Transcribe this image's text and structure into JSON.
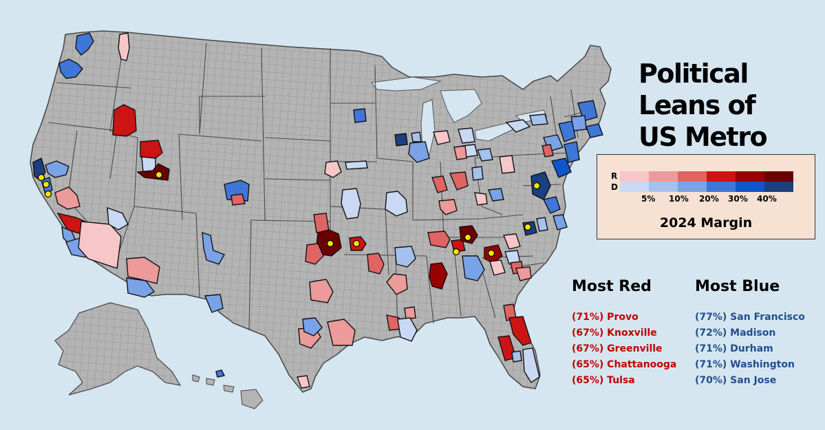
{
  "title": {
    "line1": "Political Leans of",
    "line2": "US Metro Areas"
  },
  "legend": {
    "row_r_label": "R",
    "row_d_label": "D",
    "red_colors": [
      "#f6c6c9",
      "#ec9a9a",
      "#e06464",
      "#cc1414",
      "#990000",
      "#6b0000"
    ],
    "blue_colors": [
      "#c9d8f3",
      "#a7c1ee",
      "#7aa2e6",
      "#3f77d8",
      "#1155cc",
      "#1c3f7d"
    ],
    "ticks": [
      "5%",
      "10%",
      "20%",
      "30%",
      "40%"
    ],
    "caption": "2024 Margin"
  },
  "most_red": {
    "heading": "Most Red",
    "items": [
      "(71%) Provo",
      "(67%) Knoxville",
      "(67%) Greenville",
      "(65%) Chattanooga",
      "(65%) Tulsa"
    ]
  },
  "most_blue": {
    "heading": "Most Blue",
    "items": [
      "(77%) San Francisco",
      "(72%) Madison",
      "(71%) Durham",
      "(71%) Washington",
      "(70%) San Jose"
    ]
  },
  "colors": {
    "ocean": "#d5e6f1",
    "land": "#b4b4b4",
    "county_lines": "#707070",
    "state_lines": "#555555",
    "marker": "#f2e600"
  }
}
